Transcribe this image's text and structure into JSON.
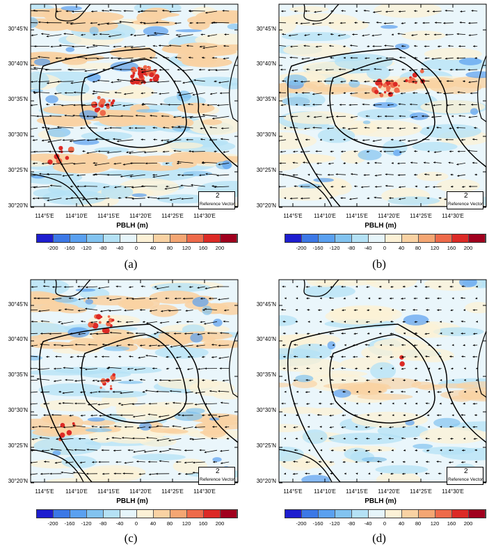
{
  "colorbar": {
    "title": "PBLH (m)",
    "ticks": [
      "-200",
      "-160",
      "-120",
      "-80",
      "-40",
      "0",
      "40",
      "80",
      "120",
      "160",
      "200"
    ],
    "colors": [
      "#1e1ecf",
      "#3c78e6",
      "#5aa0f0",
      "#82c3f0",
      "#b4e1f5",
      "#e6f5fa",
      "#fcf1d6",
      "#f9d2a3",
      "#f4a673",
      "#ee6a4a",
      "#dc2a26",
      "#a0001e"
    ]
  },
  "axes": {
    "lat_labels": [
      "30°45'N",
      "30°40'N",
      "30°35'N",
      "30°30'N",
      "30°25'N",
      "30°20'N"
    ],
    "lon_labels": [
      "114°5'E",
      "114°10'E",
      "114°15'E",
      "114°20'E",
      "114°25'E",
      "114°30'E"
    ]
  },
  "reference_vector": {
    "value": "2",
    "label": "Reference Vector"
  },
  "panels": [
    {
      "tag": "(a)",
      "intensity": 1.0
    },
    {
      "tag": "(b)",
      "intensity": 0.6
    },
    {
      "tag": "(c)",
      "intensity": 0.8
    },
    {
      "tag": "(d)",
      "intensity": 0.3
    }
  ]
}
